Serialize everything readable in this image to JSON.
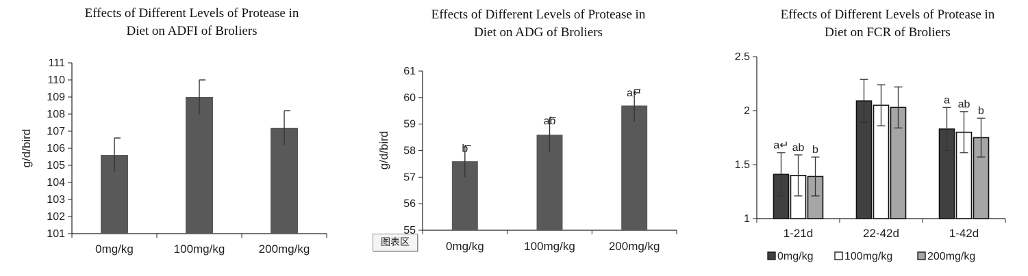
{
  "chart_data": [
    {
      "type": "bar",
      "title": [
        "Effects of Different Levels of Protease in",
        "Diet on ADFI of Broliers"
      ],
      "ylabel": "g/d/bird",
      "ylim": [
        101,
        111
      ],
      "yticks": [
        101,
        102,
        103,
        104,
        105,
        106,
        107,
        108,
        109,
        110,
        111
      ],
      "categories": [
        "0mg/kg",
        "100mg/kg",
        "200mg/kg"
      ],
      "values": [
        105.6,
        109.0,
        107.2
      ],
      "errors": [
        1.0,
        1.0,
        1.0
      ],
      "annotations": [
        "",
        "",
        ""
      ],
      "color": "#595959"
    },
    {
      "type": "bar",
      "title": [
        "Effects of Different Levels of Protease in",
        "Diet on ADG of Broliers"
      ],
      "ylabel": "g/d/bird",
      "ylim": [
        55,
        61
      ],
      "yticks": [
        55,
        56,
        57,
        58,
        59,
        60,
        61
      ],
      "categories": [
        "0mg/kg",
        "100mg/kg",
        "200mg/kg"
      ],
      "values": [
        57.6,
        58.6,
        59.7
      ],
      "errors": [
        0.6,
        0.65,
        0.6
      ],
      "annotations": [
        "b",
        "ab",
        "a↵"
      ],
      "color": "#595959",
      "area_tag": "图表区"
    },
    {
      "type": "bar",
      "title": [
        "Effects of Different Levels of Protease in",
        "Diet on FCR of Broliers"
      ],
      "ylim": [
        1,
        2.5
      ],
      "yticks": [
        1,
        1.5,
        2,
        2.5
      ],
      "yticklabels": [
        "1",
        "1.5",
        "2",
        "2.5"
      ],
      "categories": [
        "1-21d",
        "22-42d",
        "1-42d"
      ],
      "series": [
        {
          "name": "0mg/kg",
          "values": [
            1.41,
            2.09,
            1.83
          ],
          "errors": [
            0.2,
            0.2,
            0.2
          ],
          "annotations": [
            "a↵",
            "",
            "a"
          ],
          "fill": "#404040"
        },
        {
          "name": "100mg/kg",
          "values": [
            1.4,
            2.05,
            1.8
          ],
          "errors": [
            0.19,
            0.19,
            0.19
          ],
          "annotations": [
            "ab",
            "",
            "ab"
          ],
          "fill": "#ffffff"
        },
        {
          "name": "200mg/kg",
          "values": [
            1.39,
            2.03,
            1.75
          ],
          "errors": [
            0.18,
            0.19,
            0.18
          ],
          "annotations": [
            "b",
            "",
            "b"
          ],
          "fill": "#a6a6a6"
        }
      ],
      "legend": "bottom"
    }
  ]
}
